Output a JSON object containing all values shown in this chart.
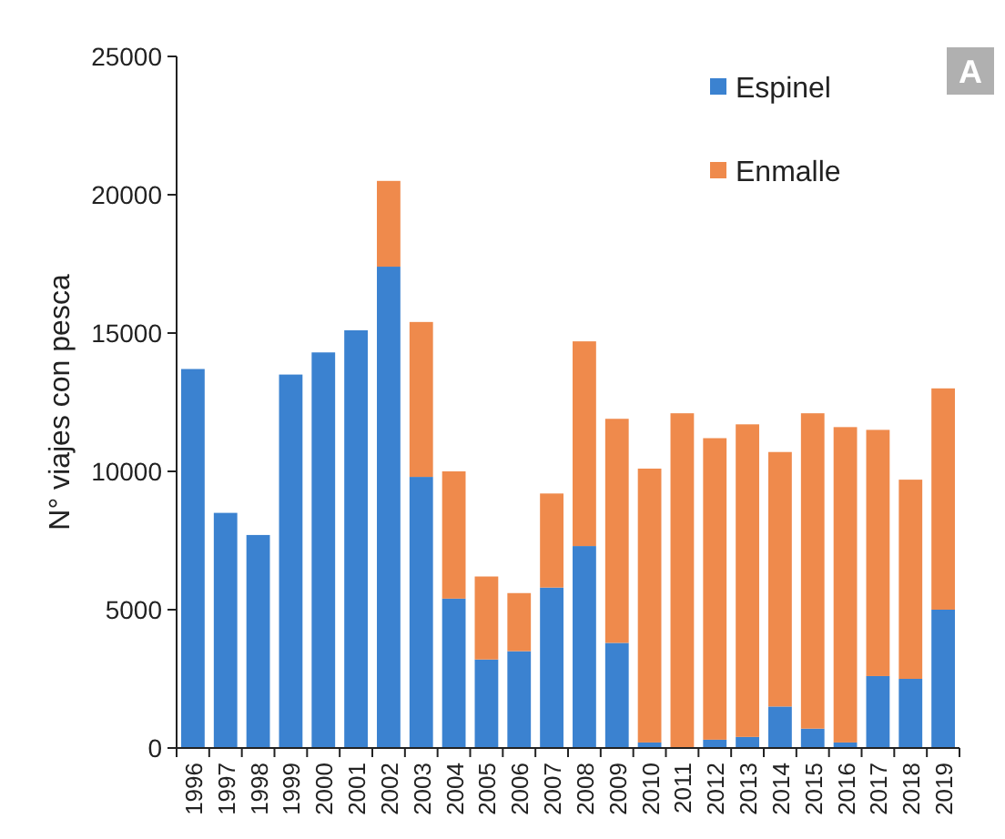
{
  "chart_data": {
    "type": "bar",
    "stacked": true,
    "ylabel": "N° viajes con pesca",
    "annotations": [
      "A"
    ],
    "categories": [
      "1996",
      "1997",
      "1998",
      "1999",
      "2000",
      "2001",
      "2002",
      "2003",
      "2004",
      "2005",
      "2006",
      "2007",
      "2008",
      "2009",
      "2010",
      "2011",
      "2012",
      "2013",
      "2014",
      "2015",
      "2016",
      "2017",
      "2018",
      "2019"
    ],
    "series": [
      {
        "name": "Espinel",
        "color": "#3b82d0",
        "values": [
          13700,
          8500,
          7700,
          13500,
          14300,
          15100,
          17400,
          9800,
          5400,
          3200,
          3500,
          5800,
          7300,
          3800,
          200,
          0,
          300,
          400,
          1500,
          700,
          200,
          2600,
          2500,
          5000
        ]
      },
      {
        "name": "Enmalle",
        "color": "#ef8a4c",
        "values": [
          0,
          0,
          0,
          0,
          0,
          0,
          3100,
          5600,
          4600,
          3000,
          2100,
          3400,
          7400,
          8100,
          9900,
          12100,
          10900,
          11300,
          9200,
          11400,
          11400,
          8900,
          7200,
          8000
        ]
      }
    ],
    "ylim": [
      0,
      25000
    ],
    "yticks": [
      0,
      5000,
      10000,
      15000,
      20000,
      25000
    ],
    "grid": false,
    "legend": "top right"
  }
}
